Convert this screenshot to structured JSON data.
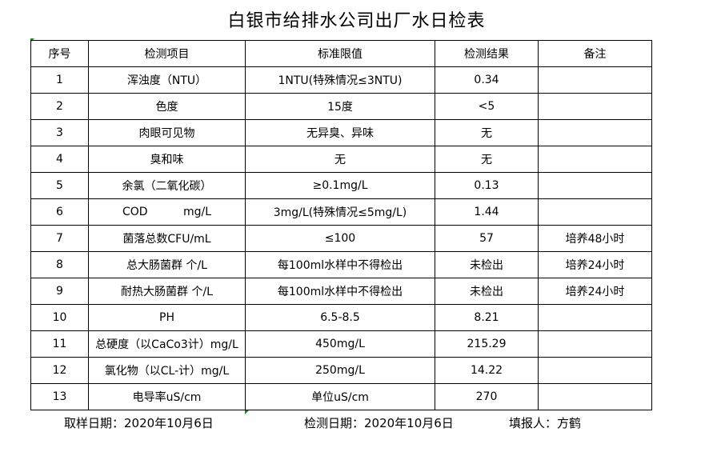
{
  "title": "白银市给排水公司出厂水日检表",
  "headers": [
    "序号",
    "检测项目",
    "标准限值",
    "检测结果",
    "备注"
  ],
  "rows": [
    [
      "1",
      "浑浊度（NTU）",
      "1NTU(特殊情况≤3NTU)",
      "0.34",
      ""
    ],
    [
      "2",
      "色度",
      "15度",
      "<5",
      ""
    ],
    [
      "3",
      "肉眼可见物",
      "无异臭、异味",
      "无",
      ""
    ],
    [
      "4",
      "臭和味",
      "无",
      "无",
      ""
    ],
    [
      "5",
      "余氯（二氧化碳）",
      "≥0.1mg/L",
      "0.13",
      ""
    ],
    [
      "6",
      "COD          mg/L",
      "3mg/L(特殊情况≤5mg/L)",
      "1.44",
      ""
    ],
    [
      "7",
      "菌落总数CFU/mL",
      "≤100",
      "57",
      "培养48小时"
    ],
    [
      "8",
      "总大肠菌群 个/L",
      "每100ml水样中不得检出",
      "未检出",
      "培养24小时"
    ],
    [
      "9",
      "耐热大肠菌群 个/L",
      "每100ml水样中不得检出",
      "未检出",
      "培养24小时"
    ],
    [
      "10",
      "PH",
      "6.5-8.5",
      "8.21",
      ""
    ],
    [
      "11",
      "总硬度（以CaCo3计）mg/L",
      "450mg/L",
      "215.29",
      ""
    ],
    [
      "12",
      "氯化物（以CL-计）mg/L",
      "250mg/L",
      "14.22",
      ""
    ],
    [
      "13",
      "电导率uS/cm",
      "单位uS/cm",
      "270",
      ""
    ]
  ],
  "footer": {
    "sample_date": "取样日期：2020年10月6日",
    "test_date": "检测日期：2020年10月6日",
    "reporter": "填报人：方鹤"
  }
}
